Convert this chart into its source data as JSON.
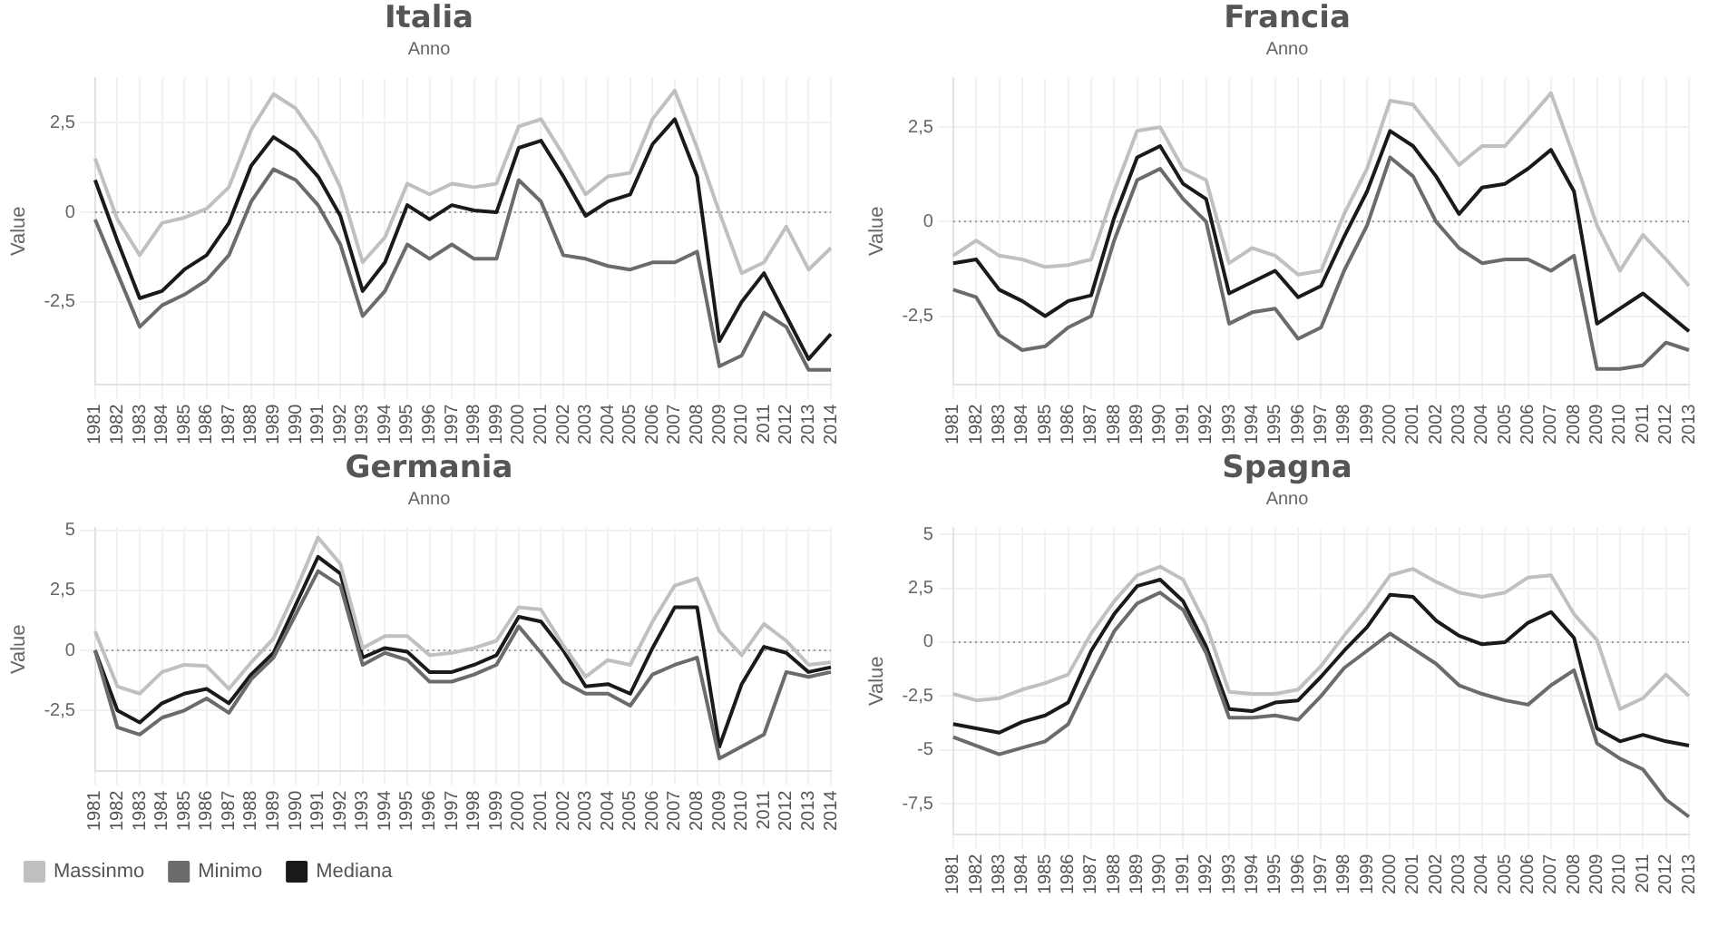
{
  "chart_data": [
    {
      "type": "line",
      "title": "Italia",
      "xlabel": "Anno",
      "ylabel": "Value",
      "categories": [
        "1981",
        "1982",
        "1983",
        "1984",
        "1985",
        "1986",
        "1987",
        "1988",
        "1989",
        "1990",
        "1991",
        "1992",
        "1993",
        "1994",
        "1995",
        "1996",
        "1997",
        "1998",
        "1999",
        "2000",
        "2001",
        "2002",
        "2003",
        "2004",
        "2005",
        "2006",
        "2007",
        "2008",
        "2009",
        "2010",
        "2011",
        "2012",
        "2013",
        "2014"
      ],
      "ylim": [
        -4.8,
        3.75
      ],
      "yticks": [
        {
          "value": -2.5,
          "label": "-2,5"
        },
        0,
        {
          "value": 2.5,
          "label": "2,5"
        }
      ],
      "grid": true,
      "ref_lines": [
        {
          "axis": "y",
          "value": 0,
          "line_style": "dotted",
          "color": "#9a9a9a"
        }
      ],
      "series": [
        {
          "color": "#c0c0c0",
          "values": [
            1.5,
            -0.2,
            -1.2,
            -0.3,
            -0.15,
            0.1,
            0.7,
            2.3,
            3.3,
            2.9,
            2.0,
            0.7,
            -1.4,
            -0.7,
            0.8,
            0.5,
            0.8,
            0.7,
            0.8,
            2.4,
            2.6,
            1.6,
            0.5,
            1.0,
            1.1,
            2.6,
            3.4,
            1.8,
            0.0,
            -1.7,
            -1.4,
            -0.4,
            -1.6,
            -1.0
          ]
        },
        {
          "color": "#6b6b6b",
          "values": [
            -0.2,
            -1.7,
            -3.2,
            -2.6,
            -2.3,
            -1.9,
            -1.2,
            0.3,
            1.2,
            0.9,
            0.2,
            -0.9,
            -2.9,
            -2.2,
            -0.9,
            -1.3,
            -0.9,
            -1.3,
            -1.3,
            0.9,
            0.3,
            -1.2,
            -1.3,
            -1.5,
            -1.6,
            -1.4,
            -1.4,
            -1.1,
            -4.3,
            -4.0,
            -2.8,
            -3.2,
            -4.4,
            -4.4
          ]
        },
        {
          "color": "#1a1a1a",
          "values": [
            0.9,
            -0.8,
            -2.4,
            -2.2,
            -1.6,
            -1.2,
            -0.3,
            1.3,
            2.1,
            1.7,
            1.0,
            -0.1,
            -2.2,
            -1.4,
            0.2,
            -0.2,
            0.2,
            0.05,
            0.0,
            1.8,
            2.0,
            1.0,
            -0.1,
            0.3,
            0.5,
            1.9,
            2.6,
            1.0,
            -3.6,
            -2.5,
            -1.7,
            -2.9,
            -4.1,
            -3.4
          ]
        }
      ]
    },
    {
      "type": "line",
      "title": "Francia",
      "xlabel": "Anno",
      "ylabel": "Value",
      "categories": [
        "1981",
        "1982",
        "1983",
        "1984",
        "1985",
        "1986",
        "1987",
        "1988",
        "1989",
        "1990",
        "1991",
        "1992",
        "1993",
        "1994",
        "1995",
        "1996",
        "1997",
        "1998",
        "1999",
        "2000",
        "2001",
        "2002",
        "2003",
        "2004",
        "2005",
        "2006",
        "2007",
        "2008",
        "2009",
        "2010",
        "2011",
        "2012",
        "2013"
      ],
      "ylim": [
        -4.3,
        3.8
      ],
      "yticks": [
        {
          "value": -2.5,
          "label": "-2,5"
        },
        0,
        {
          "value": 2.5,
          "label": "2,5"
        }
      ],
      "grid": true,
      "ref_lines": [
        {
          "axis": "y",
          "value": 0,
          "line_style": "dotted",
          "color": "#9a9a9a"
        }
      ],
      "series": [
        {
          "color": "#c0c0c0",
          "values": [
            -0.9,
            -0.5,
            -0.9,
            -1.0,
            -1.2,
            -1.15,
            -1.0,
            0.8,
            2.4,
            2.5,
            1.4,
            1.1,
            -1.1,
            -0.7,
            -0.9,
            -1.4,
            -1.3,
            0.2,
            1.4,
            3.2,
            3.1,
            2.3,
            1.5,
            2.0,
            2.0,
            2.7,
            3.4,
            1.7,
            -0.1,
            -1.3,
            -0.35,
            -1.0,
            -1.7
          ]
        },
        {
          "color": "#6b6b6b",
          "values": [
            -1.8,
            -2.0,
            -3.0,
            -3.4,
            -3.3,
            -2.8,
            -2.5,
            -0.5,
            1.1,
            1.4,
            0.6,
            0.0,
            -2.7,
            -2.4,
            -2.3,
            -3.1,
            -2.8,
            -1.3,
            -0.1,
            1.7,
            1.2,
            0.0,
            -0.7,
            -1.1,
            -1.0,
            -1.0,
            -1.3,
            -0.9,
            -3.9,
            -3.9,
            -3.8,
            -3.2,
            -3.4
          ]
        },
        {
          "color": "#1a1a1a",
          "values": [
            -1.1,
            -1.0,
            -1.8,
            -2.1,
            -2.5,
            -2.1,
            -1.95,
            0.1,
            1.7,
            2.0,
            1.0,
            0.6,
            -1.9,
            -1.6,
            -1.3,
            -2.0,
            -1.7,
            -0.4,
            0.8,
            2.4,
            2.0,
            1.2,
            0.2,
            0.9,
            1.0,
            1.4,
            1.9,
            0.8,
            -2.7,
            -2.3,
            -1.9,
            -2.4,
            -2.9
          ]
        }
      ]
    },
    {
      "type": "line",
      "title": "Germania",
      "xlabel": "Anno",
      "ylabel": "Value",
      "categories": [
        "1981",
        "1982",
        "1983",
        "1984",
        "1985",
        "1986",
        "1987",
        "1988",
        "1989",
        "1990",
        "1991",
        "1992",
        "1993",
        "1994",
        "1995",
        "1996",
        "1997",
        "1998",
        "1999",
        "2000",
        "2001",
        "2002",
        "2003",
        "2004",
        "2005",
        "2006",
        "2007",
        "2008",
        "2009",
        "2010",
        "2011",
        "2012",
        "2013",
        "2014"
      ],
      "ylim": [
        -5.0,
        5.1
      ],
      "yticks": [
        {
          "value": -2.5,
          "label": "-2,5"
        },
        0,
        {
          "value": 2.5,
          "label": "2,5"
        },
        5
      ],
      "grid": true,
      "legend": "bottom left",
      "ref_lines": [
        {
          "axis": "y",
          "value": 0,
          "line_style": "dotted",
          "color": "#9a9a9a"
        }
      ],
      "series": [
        {
          "name": "Massinmo",
          "color": "#c0c0c0",
          "values": [
            0.8,
            -1.5,
            -1.8,
            -0.9,
            -0.6,
            -0.65,
            -1.6,
            -0.5,
            0.5,
            2.5,
            4.7,
            3.6,
            0.1,
            0.6,
            0.6,
            -0.2,
            -0.1,
            0.1,
            0.4,
            1.8,
            1.7,
            0.2,
            -1.1,
            -0.4,
            -0.6,
            1.2,
            2.7,
            3.0,
            0.8,
            -0.2,
            1.1,
            0.4,
            -0.6,
            -0.5
          ]
        },
        {
          "name": "Minimo",
          "color": "#6b6b6b",
          "values": [
            0.0,
            -3.2,
            -3.5,
            -2.8,
            -2.5,
            -2.0,
            -2.6,
            -1.2,
            -0.3,
            1.5,
            3.3,
            2.7,
            -0.6,
            -0.1,
            -0.4,
            -1.3,
            -1.3,
            -1.0,
            -0.6,
            1.0,
            -0.1,
            -1.3,
            -1.8,
            -1.8,
            -2.3,
            -1.0,
            -0.6,
            -0.3,
            -4.5,
            -4.0,
            -3.5,
            -0.9,
            -1.1,
            -0.9
          ]
        },
        {
          "name": "Mediana",
          "color": "#1a1a1a",
          "values": [
            0.0,
            -2.5,
            -3.0,
            -2.2,
            -1.8,
            -1.6,
            -2.2,
            -1.0,
            -0.1,
            1.9,
            3.9,
            3.2,
            -0.3,
            0.1,
            -0.05,
            -0.9,
            -0.9,
            -0.6,
            -0.2,
            1.4,
            1.2,
            0.0,
            -1.5,
            -1.4,
            -1.8,
            0.1,
            1.8,
            1.8,
            -4.0,
            -1.4,
            0.15,
            -0.1,
            -0.9,
            -0.7
          ]
        }
      ]
    },
    {
      "type": "line",
      "title": "Spagna",
      "xlabel": "Anno",
      "ylabel": "Value",
      "categories": [
        "1981",
        "1982",
        "1983",
        "1984",
        "1985",
        "1986",
        "1987",
        "1988",
        "1989",
        "1990",
        "1991",
        "1992",
        "1993",
        "1994",
        "1995",
        "1996",
        "1997",
        "1998",
        "1999",
        "2000",
        "2001",
        "2002",
        "2003",
        "2004",
        "2005",
        "2006",
        "2007",
        "2008",
        "2009",
        "2010",
        "2011",
        "2012",
        "2013"
      ],
      "ylim": [
        -8.9,
        5.3
      ],
      "yticks": [
        {
          "value": -7.5,
          "label": "-7,5"
        },
        -5,
        {
          "value": -2.5,
          "label": "-2,5"
        },
        0,
        {
          "value": 2.5,
          "label": "2,5"
        },
        5
      ],
      "grid": true,
      "ref_lines": [
        {
          "axis": "y",
          "value": 0,
          "line_style": "dotted",
          "color": "#9a9a9a"
        }
      ],
      "series": [
        {
          "color": "#c0c0c0",
          "values": [
            -2.4,
            -2.7,
            -2.6,
            -2.2,
            -1.9,
            -1.5,
            0.4,
            1.9,
            3.1,
            3.5,
            2.9,
            0.8,
            -2.3,
            -2.4,
            -2.4,
            -2.2,
            -1.1,
            0.3,
            1.6,
            3.1,
            3.4,
            2.8,
            2.3,
            2.1,
            2.3,
            3.0,
            3.1,
            1.3,
            0.1,
            -3.1,
            -2.6,
            -1.5,
            -2.5
          ]
        },
        {
          "color": "#6b6b6b",
          "values": [
            -4.4,
            -4.8,
            -5.2,
            -4.9,
            -4.6,
            -3.8,
            -1.6,
            0.5,
            1.8,
            2.3,
            1.5,
            -0.5,
            -3.5,
            -3.5,
            -3.4,
            -3.6,
            -2.5,
            -1.2,
            -0.4,
            0.4,
            -0.3,
            -1.0,
            -2.0,
            -2.4,
            -2.7,
            -2.9,
            -2.0,
            -1.3,
            -4.7,
            -5.4,
            -5.9,
            -7.3,
            -8.1
          ]
        },
        {
          "color": "#1a1a1a",
          "values": [
            -3.8,
            -4.0,
            -4.2,
            -3.7,
            -3.4,
            -2.8,
            -0.4,
            1.3,
            2.6,
            2.9,
            1.9,
            -0.2,
            -3.1,
            -3.2,
            -2.8,
            -2.7,
            -1.6,
            -0.4,
            0.7,
            2.2,
            2.1,
            1.0,
            0.3,
            -0.1,
            0.0,
            0.9,
            1.4,
            0.2,
            -4.0,
            -4.6,
            -4.3,
            -4.6,
            -4.8
          ]
        }
      ]
    }
  ]
}
